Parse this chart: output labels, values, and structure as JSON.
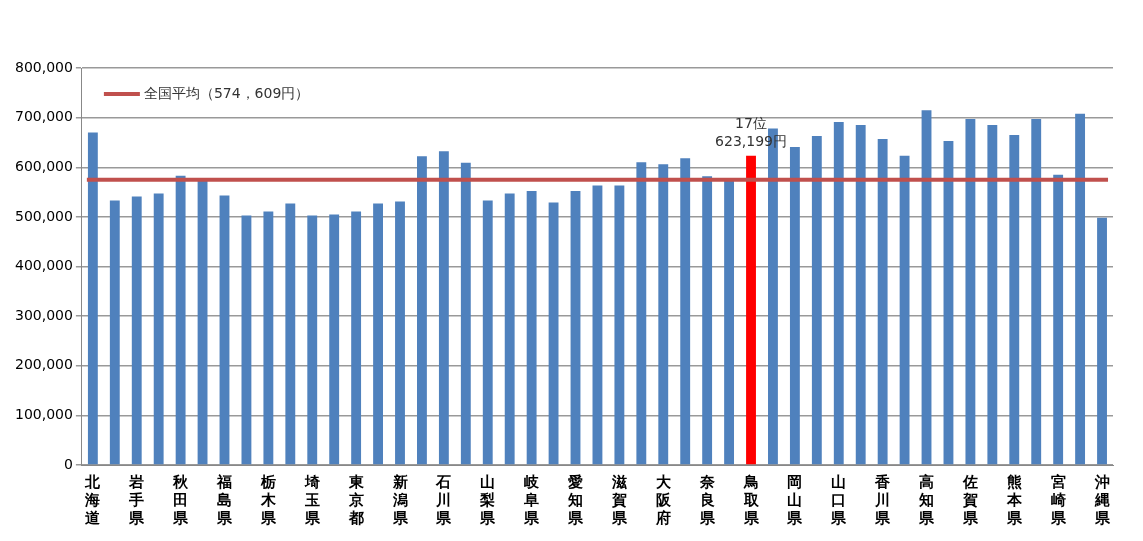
{
  "chart_data": {
    "type": "bar",
    "categories": [
      "北海道",
      null,
      "岩手県",
      null,
      "秋田県",
      null,
      "福島県",
      null,
      "栃木県",
      null,
      "埼玉県",
      null,
      "東京都",
      null,
      "新潟県",
      null,
      "石川県",
      null,
      "山梨県",
      null,
      "岐阜県",
      null,
      "愛知県",
      null,
      "滋賀県",
      null,
      "大阪府",
      null,
      "奈良県",
      null,
      "鳥取県",
      null,
      "岡山県",
      null,
      "山口県",
      null,
      "香川県",
      null,
      "高知県",
      null,
      "佐賀県",
      null,
      "熊本県",
      null,
      "宮崎県",
      null,
      "沖縄県"
    ],
    "values": [
      670000,
      533000,
      541000,
      547000,
      583000,
      574000,
      543000,
      503000,
      511000,
      527000,
      503000,
      505000,
      511000,
      527000,
      531000,
      622000,
      632000,
      609000,
      533000,
      547000,
      552000,
      529000,
      552000,
      563000,
      563000,
      610000,
      606000,
      618000,
      582000,
      573000,
      623199,
      678000,
      641000,
      663000,
      691000,
      685000,
      657000,
      623000,
      715000,
      653000,
      697000,
      685000,
      665000,
      697000,
      585000,
      708000,
      498000
    ],
    "colors": [
      "#4f81bd",
      "#4f81bd",
      "#4f81bd",
      "#4f81bd",
      "#4f81bd",
      "#4f81bd",
      "#4f81bd",
      "#4f81bd",
      "#4f81bd",
      "#4f81bd",
      "#4f81bd",
      "#4f81bd",
      "#4f81bd",
      "#4f81bd",
      "#4f81bd",
      "#4f81bd",
      "#4f81bd",
      "#4f81bd",
      "#4f81bd",
      "#4f81bd",
      "#4f81bd",
      "#4f81bd",
      "#4f81bd",
      "#4f81bd",
      "#4f81bd",
      "#4f81bd",
      "#4f81bd",
      "#4f81bd",
      "#4f81bd",
      "#4f81bd",
      "#ff0000",
      "#4f81bd",
      "#4f81bd",
      "#4f81bd",
      "#4f81bd",
      "#4f81bd",
      "#4f81bd",
      "#4f81bd",
      "#4f81bd",
      "#4f81bd",
      "#4f81bd",
      "#4f81bd",
      "#4f81bd",
      "#4f81bd",
      "#4f81bd",
      "#4f81bd",
      "#4f81bd"
    ],
    "value_labels": [
      null,
      null,
      null,
      null,
      null,
      null,
      null,
      null,
      null,
      null,
      null,
      null,
      null,
      null,
      null,
      null,
      null,
      null,
      null,
      null,
      null,
      null,
      null,
      null,
      null,
      null,
      null,
      null,
      null,
      null,
      "623,199円",
      null,
      null,
      null,
      null,
      null,
      null,
      null,
      null,
      null,
      null,
      null,
      null,
      null,
      null,
      null,
      null
    ],
    "annotations": [
      {
        "text": "17位",
        "x": "鳥取県",
        "y": 623199
      }
    ],
    "ref_lines": [
      {
        "axis": "y",
        "value": 574609,
        "label": "全国平均（574，609円）",
        "color": "#c0504d"
      }
    ],
    "ylim": [
      0,
      800000
    ],
    "yticks": [
      {
        "value": 0,
        "label": "0"
      },
      {
        "value": 100000,
        "label": "100,000"
      },
      {
        "value": 200000,
        "label": "200,000"
      },
      {
        "value": 300000,
        "label": "300,000"
      },
      {
        "value": 400000,
        "label": "400,000"
      },
      {
        "value": 500000,
        "label": "500,000"
      },
      {
        "value": 600000,
        "label": "600,000"
      },
      {
        "value": 700000,
        "label": "700,000"
      },
      {
        "value": 800000,
        "label": "800,000"
      }
    ],
    "grid": "y",
    "legend": "top left"
  }
}
